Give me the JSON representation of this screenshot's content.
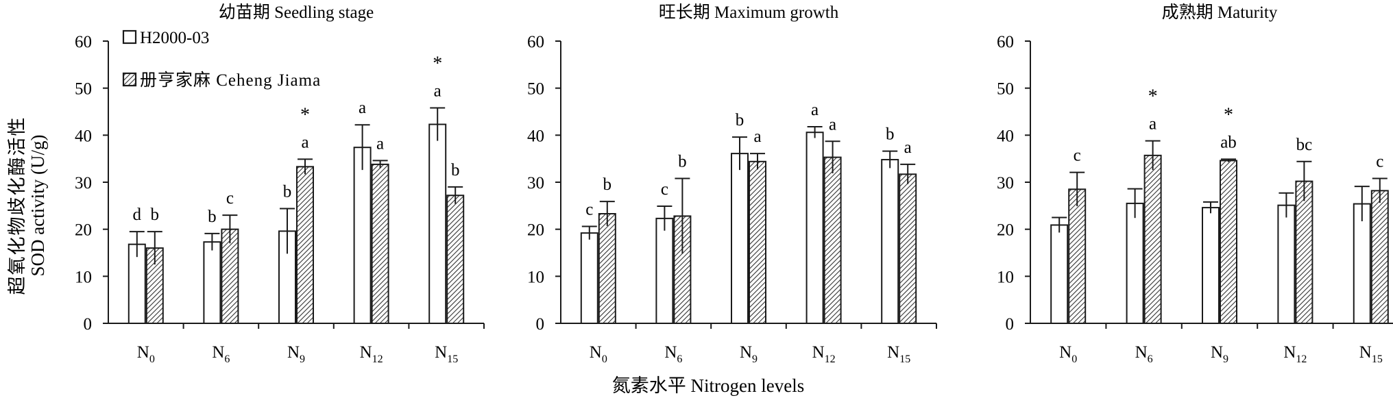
{
  "figure": {
    "ylabel_zh": "超氧化物歧化酶活性",
    "ylabel_en": "SOD activity (U/g)",
    "xlabel": "氮素水平 Nitrogen levels",
    "legend": [
      "H2000-03",
      "册亨家麻 Ceheng Jiama"
    ],
    "colors": {
      "bar1": "#ffffff",
      "bar2_hatch": "#333333",
      "stroke": "#1a1a1a"
    }
  },
  "chart_data": [
    {
      "type": "bar",
      "title": "幼苗期 Seedling stage",
      "categories": [
        "N0",
        "N6",
        "N9",
        "N12",
        "N15"
      ],
      "ylim": [
        0,
        60
      ],
      "yticks": [
        0,
        10,
        20,
        30,
        40,
        50,
        60
      ],
      "series": [
        {
          "name": "H2000-03",
          "values": [
            16.8,
            17.3,
            19.6,
            37.4,
            42.3
          ],
          "errors": [
            2.7,
            1.8,
            4.8,
            4.8,
            3.5
          ]
        },
        {
          "name": "册亨家麻 Ceheng Jiama",
          "values": [
            16.0,
            20.0,
            33.3,
            33.8,
            27.2
          ],
          "errors": [
            3.5,
            3.0,
            1.6,
            0.8,
            1.8
          ]
        }
      ],
      "letters": [
        [
          "d",
          "b"
        ],
        [
          "b",
          "c"
        ],
        [
          "b",
          "a"
        ],
        [
          "a",
          "a"
        ],
        [
          "a",
          "b"
        ]
      ],
      "stars": [
        "",
        "",
        "*",
        "",
        "*"
      ]
    },
    {
      "type": "bar",
      "title": "旺长期 Maximum growth",
      "categories": [
        "N0",
        "N6",
        "N9",
        "N12",
        "N15"
      ],
      "ylim": [
        0,
        60
      ],
      "yticks": [
        0,
        10,
        20,
        30,
        40,
        50,
        60
      ],
      "series": [
        {
          "name": "H2000-03",
          "values": [
            19.2,
            22.3,
            36.1,
            40.6,
            34.8
          ],
          "errors": [
            1.4,
            2.6,
            3.5,
            1.2,
            1.8
          ]
        },
        {
          "name": "册亨家麻 Ceheng Jiama",
          "values": [
            23.3,
            22.8,
            34.4,
            35.3,
            31.7
          ],
          "errors": [
            2.6,
            8.0,
            1.7,
            3.4,
            2.1
          ]
        }
      ],
      "letters": [
        [
          "c",
          "b"
        ],
        [
          "c",
          "b"
        ],
        [
          "b",
          "a"
        ],
        [
          "a",
          "a"
        ],
        [
          "b",
          "a"
        ]
      ],
      "stars": [
        "",
        "",
        "",
        "",
        ""
      ]
    },
    {
      "type": "bar",
      "title": "成熟期 Maturity",
      "categories": [
        "N0",
        "N6",
        "N9",
        "N12",
        "N15"
      ],
      "ylim": [
        0,
        60
      ],
      "yticks": [
        0,
        10,
        20,
        30,
        40,
        50,
        60
      ],
      "series": [
        {
          "name": "H2000-03",
          "values": [
            20.9,
            25.5,
            24.6,
            25.1,
            25.4
          ],
          "errors": [
            1.6,
            3.1,
            1.2,
            2.6,
            3.7
          ]
        },
        {
          "name": "册亨家麻 Ceheng Jiama",
          "values": [
            28.5,
            35.7,
            34.6,
            30.2,
            28.2
          ],
          "errors": [
            3.6,
            3.1,
            0.3,
            4.2,
            2.6
          ]
        }
      ],
      "letters": [
        [
          "",
          "c"
        ],
        [
          "",
          "a"
        ],
        [
          "",
          "ab"
        ],
        [
          "",
          "bc"
        ],
        [
          "",
          "c"
        ]
      ],
      "stars": [
        "",
        "*",
        "*",
        "",
        ""
      ]
    }
  ]
}
